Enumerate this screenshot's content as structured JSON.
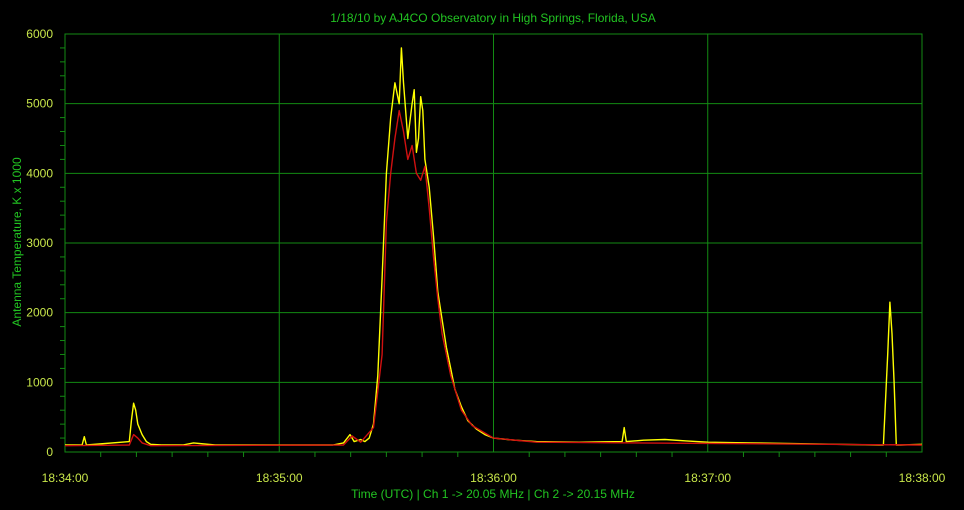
{
  "colors": {
    "background": "#000000",
    "grid": "#138a13",
    "axis_text": "#c8e64a",
    "title_text": "#22c422",
    "ch1": "#ffff00",
    "ch2": "#d01010"
  },
  "chart_data": {
    "type": "line",
    "title": "1/18/10  by  AJ4CO Observatory  in  High Springs, Florida, USA",
    "xlabel": "Time (UTC)  |  Ch 1 -> 20.05 MHz  |  Ch 2 -> 20.15 MHz",
    "ylabel": "Antenna Temperature, K x 1000",
    "x_tick_labels": [
      "18:34:00",
      "18:35:00",
      "18:36:00",
      "18:37:00",
      "18:38:00"
    ],
    "y_tick_labels": [
      "0",
      "1000",
      "2000",
      "3000",
      "4000",
      "5000",
      "6000"
    ],
    "xlim_minutes": [
      0,
      4
    ],
    "ylim": [
      0,
      6000
    ],
    "grid": true,
    "series": [
      {
        "name": "Ch 1 -> 20.05 MHz",
        "color": "#ffff00",
        "x_minutes": [
          0.0,
          0.08,
          0.09,
          0.1,
          0.3,
          0.31,
          0.32,
          0.33,
          0.34,
          0.36,
          0.38,
          0.4,
          0.45,
          0.55,
          0.6,
          0.7,
          0.9,
          1.1,
          1.25,
          1.3,
          1.33,
          1.35,
          1.38,
          1.4,
          1.42,
          1.44,
          1.46,
          1.48,
          1.5,
          1.52,
          1.54,
          1.56,
          1.57,
          1.58,
          1.6,
          1.62,
          1.63,
          1.64,
          1.65,
          1.66,
          1.67,
          1.68,
          1.7,
          1.72,
          1.73,
          1.74,
          1.76,
          1.78,
          1.8,
          1.82,
          1.85,
          1.88,
          1.92,
          1.96,
          2.0,
          2.1,
          2.2,
          2.4,
          2.6,
          2.61,
          2.62,
          2.7,
          2.8,
          2.9,
          3.0,
          3.2,
          3.4,
          3.6,
          3.8,
          3.82,
          3.84,
          3.85,
          3.86,
          3.87,
          3.88,
          3.89,
          3.9,
          4.0
        ],
        "y": [
          100,
          100,
          220,
          100,
          150,
          450,
          700,
          600,
          400,
          250,
          150,
          110,
          100,
          100,
          130,
          100,
          100,
          100,
          100,
          130,
          250,
          150,
          180,
          150,
          200,
          400,
          1100,
          2500,
          4000,
          4800,
          5300,
          5000,
          5800,
          5300,
          4500,
          5000,
          5200,
          4300,
          4500,
          5100,
          4900,
          4200,
          3800,
          3100,
          2700,
          2300,
          1900,
          1500,
          1200,
          900,
          650,
          450,
          330,
          250,
          200,
          170,
          150,
          140,
          150,
          350,
          150,
          170,
          180,
          160,
          140,
          130,
          120,
          110,
          100,
          100,
          1400,
          2150,
          1700,
          1000,
          100,
          100,
          100,
          110
        ]
      },
      {
        "name": "Ch 2 -> 20.15 MHz",
        "color": "#d01010",
        "x_minutes": [
          0.0,
          0.3,
          0.32,
          0.34,
          0.36,
          0.4,
          1.3,
          1.34,
          1.38,
          1.44,
          1.48,
          1.5,
          1.52,
          1.54,
          1.56,
          1.58,
          1.6,
          1.62,
          1.64,
          1.66,
          1.68,
          1.7,
          1.72,
          1.74,
          1.76,
          1.8,
          1.85,
          1.9,
          2.0,
          2.2,
          4.0
        ],
        "y": [
          90,
          100,
          250,
          200,
          130,
          90,
          100,
          230,
          140,
          350,
          1400,
          3300,
          4000,
          4500,
          4900,
          4600,
          4200,
          4400,
          4000,
          3900,
          4100,
          3500,
          2800,
          2200,
          1700,
          1100,
          600,
          380,
          200,
          140,
          100
        ]
      }
    ]
  }
}
